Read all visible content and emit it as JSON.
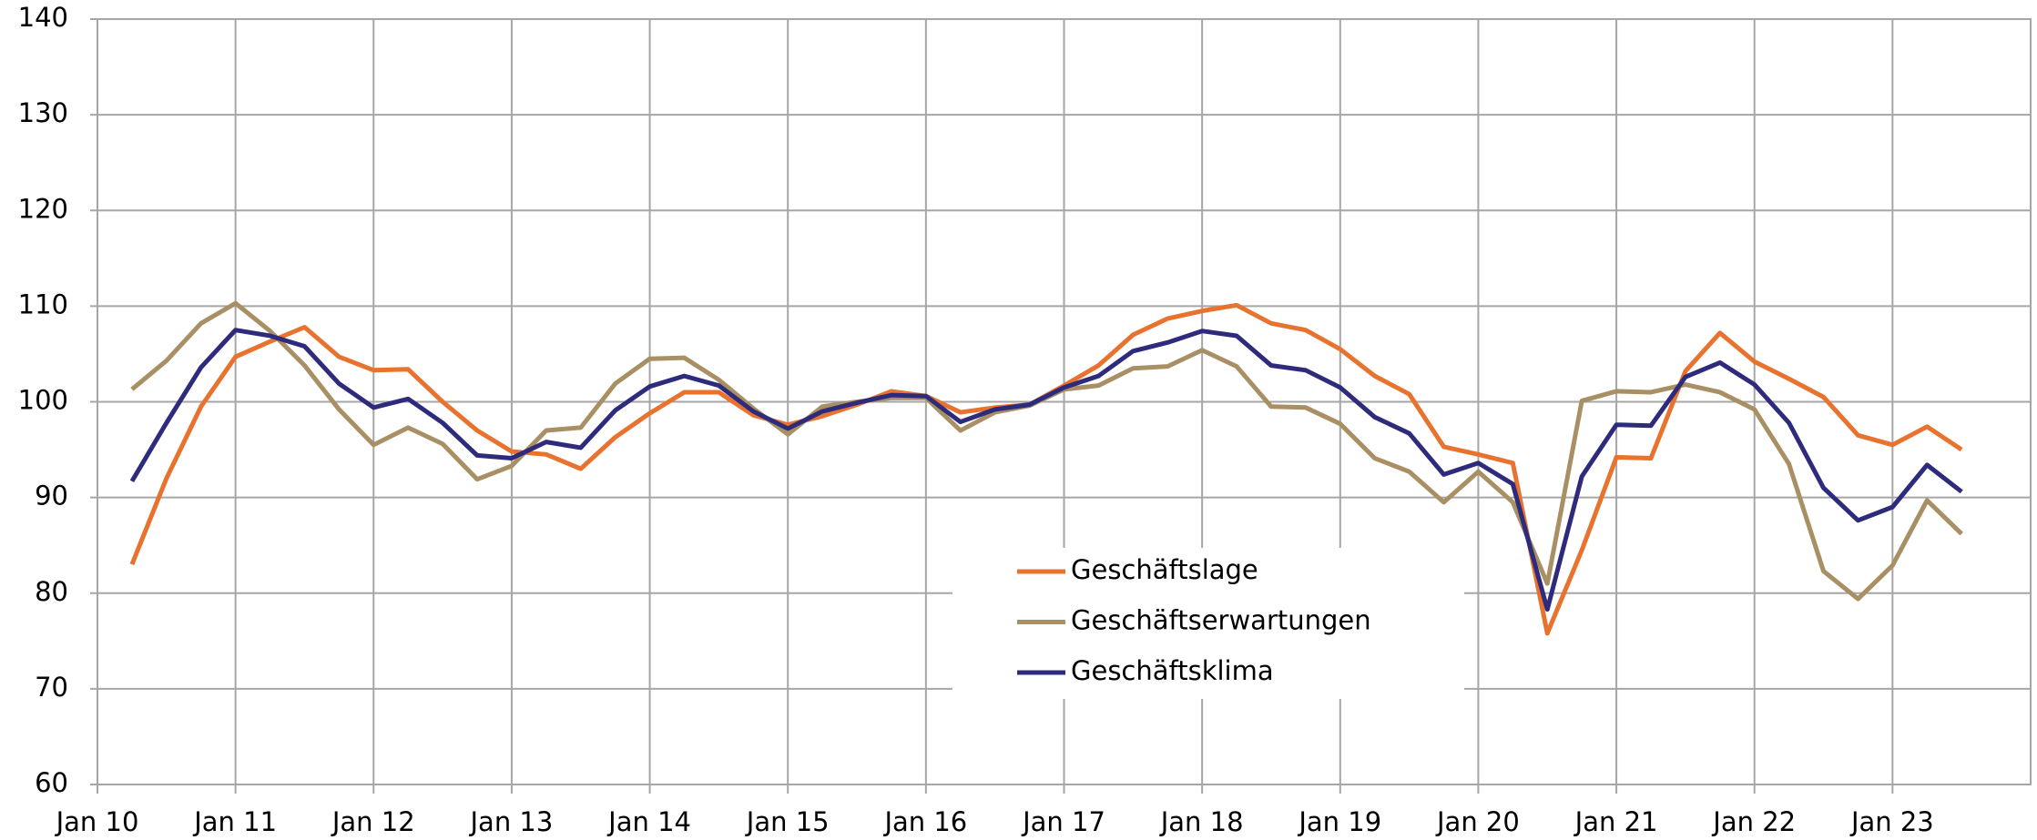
{
  "chart_data": {
    "type": "line",
    "x": [
      2010.25,
      2010.5,
      2010.75,
      2011,
      2011.25,
      2011.5,
      2011.75,
      2012,
      2012.25,
      2012.5,
      2012.75,
      2013,
      2013.25,
      2013.5,
      2013.75,
      2014,
      2014.25,
      2014.5,
      2014.75,
      2015,
      2015.25,
      2015.5,
      2015.75,
      2016,
      2016.25,
      2016.5,
      2016.75,
      2017,
      2017.25,
      2017.5,
      2017.75,
      2018,
      2018.25,
      2018.5,
      2018.75,
      2019,
      2019.25,
      2019.5,
      2019.75,
      2020,
      2020.25,
      2020.5,
      2020.75,
      2021,
      2021.25,
      2021.5,
      2021.75,
      2022,
      2022.25,
      2022.5,
      2022.75,
      2023,
      2023.25,
      2023.5
    ],
    "series": [
      {
        "name": "Geschäftslage",
        "color": "#e8732f",
        "values": [
          83,
          92,
          99.5,
          104.7,
          106.3,
          107.8,
          104.7,
          103.3,
          103.4,
          100,
          97,
          94.8,
          94.5,
          93,
          96.3,
          98.8,
          101,
          101,
          98.6,
          97.6,
          98.5,
          99.7,
          101.1,
          100.6,
          98.9,
          99.4,
          99.7,
          101.7,
          103.8,
          107,
          108.7,
          109.5,
          110.1,
          108.2,
          107.5,
          105.5,
          102.7,
          100.8,
          95.3,
          94.5,
          93.6,
          75.8,
          84.5,
          94.2,
          94.1,
          103.2,
          107.2,
          104.2,
          102.4,
          100.5,
          96.5,
          95.5,
          97.4,
          95
        ]
      },
      {
        "name": "Geschäftserwartungen",
        "color": "#a89064",
        "values": [
          101.3,
          104.3,
          108.2,
          110.3,
          107.4,
          103.8,
          99.2,
          95.5,
          97.3,
          95.6,
          91.9,
          93.3,
          97,
          97.3,
          101.9,
          104.5,
          104.6,
          102.3,
          99.3,
          96.6,
          99.5,
          100,
          100.4,
          100.4,
          97,
          98.9,
          99.6,
          101.3,
          101.7,
          103.5,
          103.7,
          105.4,
          103.7,
          99.5,
          99.4,
          97.7,
          94.1,
          92.7,
          89.5,
          92.7,
          89.5,
          81,
          100.1,
          101.1,
          101,
          101.8,
          101,
          99.2,
          93.5,
          82.3,
          79.4,
          82.9,
          89.7,
          86.2
        ]
      },
      {
        "name": "Geschäftsklima",
        "color": "#2e2b7d",
        "values": [
          91.7,
          97.8,
          103.6,
          107.5,
          106.9,
          105.8,
          101.9,
          99.4,
          100.3,
          97.8,
          94.4,
          94.1,
          95.8,
          95.2,
          99.1,
          101.6,
          102.7,
          101.7,
          99,
          97.2,
          99,
          99.9,
          100.7,
          100.6,
          97.9,
          99.2,
          99.7,
          101.5,
          102.7,
          105.3,
          106.2,
          107.4,
          106.9,
          103.8,
          103.3,
          101.5,
          98.4,
          96.7,
          92.4,
          93.6,
          91.4,
          78.3,
          92.2,
          97.6,
          97.5,
          102.6,
          104.1,
          101.8,
          97.8,
          91,
          87.6,
          89,
          93.4,
          90.6
        ]
      }
    ],
    "xlim": [
      2010,
      2024
    ],
    "xticks": [
      {
        "value": 2010,
        "label": "Jan 10"
      },
      {
        "value": 2011,
        "label": "Jan 11"
      },
      {
        "value": 2012,
        "label": "Jan 12"
      },
      {
        "value": 2013,
        "label": "Jan 13"
      },
      {
        "value": 2014,
        "label": "Jan 14"
      },
      {
        "value": 2015,
        "label": "Jan 15"
      },
      {
        "value": 2016,
        "label": "Jan 16"
      },
      {
        "value": 2017,
        "label": "Jan 17"
      },
      {
        "value": 2018,
        "label": "Jan 18"
      },
      {
        "value": 2019,
        "label": "Jan 19"
      },
      {
        "value": 2020,
        "label": "Jan 20"
      },
      {
        "value": 2021,
        "label": "Jan 21"
      },
      {
        "value": 2022,
        "label": "Jan 22"
      },
      {
        "value": 2023,
        "label": "Jan 23"
      }
    ],
    "ylim": [
      60,
      140
    ],
    "yticks": [
      60,
      70,
      80,
      90,
      100,
      110,
      120,
      130,
      140
    ],
    "grid": true
  }
}
